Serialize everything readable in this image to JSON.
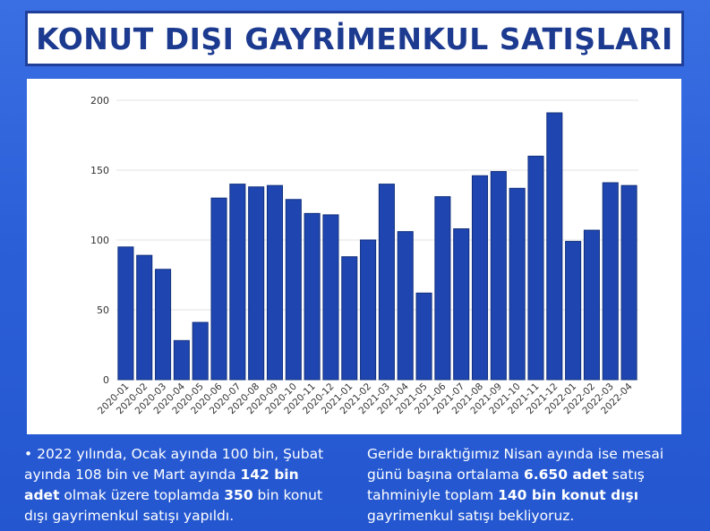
{
  "title": "KONUT DIŞI GAYRİMENKUL SATIŞLARI",
  "colors": {
    "bar": "#1f46b0",
    "bar_edge": "#12307d",
    "title_text": "#1c3a8f",
    "background": "#2f63d8"
  },
  "chart_data": {
    "type": "bar",
    "title": "",
    "xlabel": "",
    "ylabel": "",
    "ylim": [
      0,
      200
    ],
    "yticks": [
      0,
      50,
      100,
      150,
      200
    ],
    "grid": true,
    "categories": [
      "2020-01",
      "2020-02",
      "2020-03",
      "2020-04",
      "2020-05",
      "2020-06",
      "2020-07",
      "2020-08",
      "2020-09",
      "2020-10",
      "2020-11",
      "2020-12",
      "2021-01",
      "2021-02",
      "2021-03",
      "2021-04",
      "2021-05",
      "2021-06",
      "2021-07",
      "2021-08",
      "2021-09",
      "2021-10",
      "2021-11",
      "2021-12",
      "2022-01",
      "2022-02",
      "2022-03",
      "2022-04"
    ],
    "values": [
      95,
      89,
      79,
      28,
      41,
      130,
      140,
      138,
      139,
      129,
      119,
      118,
      88,
      100,
      140,
      106,
      62,
      131,
      108,
      146,
      149,
      137,
      160,
      191,
      99,
      107,
      141,
      139
    ]
  },
  "text_left": {
    "bullet": "•",
    "s1": " 2022 yılında, Ocak ayında 100 bin, Şubat ayında 108 bin ve Mart ayında ",
    "b1": "142 bin adet",
    "s2": " olmak üzere toplamda ",
    "b2": "350",
    "s3": " bin konut dışı gayrimenkul satışı yapıldı."
  },
  "text_right": {
    "s1": "Geride bıraktığımız Nisan ayında ise mesai günü başına ortalama ",
    "b1": "6.650 adet",
    "s2": " satış tahminiyle toplam ",
    "b2": "140 bin konut dışı",
    "s3": " gayrimenkul satışı bekliyoruz."
  }
}
